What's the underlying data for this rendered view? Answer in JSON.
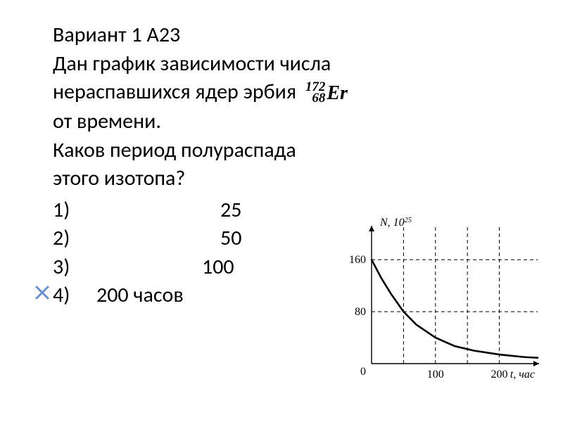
{
  "header": "Вариант 1 А23",
  "prompt_line1": "Дан график зависимости числа",
  "prompt_line2_a": "нераспавшихся ядер эрбия",
  "isotope": {
    "mass": "172",
    "z": "68",
    "el": "Er"
  },
  "prompt_line3": "от времени.",
  "prompt_line4": "Каков период полураспада",
  "prompt_line5": "этого изотопа?",
  "answers": [
    {
      "n": "1)",
      "v": "25"
    },
    {
      "n": "2)",
      "v": "50"
    },
    {
      "n": "3)",
      "v": "100"
    },
    {
      "n": "4)",
      "v": "200 часов"
    }
  ],
  "xmark_color": "#6b8fc9",
  "chart": {
    "axis": {
      "ylabel": "N, 10",
      "ylabel_sup": "25",
      "xlabel": "t, час",
      "yticks": [
        {
          "v": 80,
          "label": "80"
        },
        {
          "v": 160,
          "label": "160"
        }
      ],
      "xticks": [
        {
          "v": 100,
          "label": "100"
        },
        {
          "v": 200,
          "label": "200"
        }
      ],
      "xlim": [
        0,
        260
      ],
      "ylim": [
        0,
        210
      ]
    },
    "grid_y": [
      80,
      160
    ],
    "grid_x": [
      50,
      100,
      150,
      200
    ],
    "curve": [
      {
        "x": 0,
        "y": 160
      },
      {
        "x": 15,
        "y": 132
      },
      {
        "x": 30,
        "y": 108
      },
      {
        "x": 50,
        "y": 80
      },
      {
        "x": 70,
        "y": 60
      },
      {
        "x": 100,
        "y": 40
      },
      {
        "x": 130,
        "y": 27
      },
      {
        "x": 160,
        "y": 20
      },
      {
        "x": 200,
        "y": 14
      },
      {
        "x": 240,
        "y": 10
      },
      {
        "x": 260,
        "y": 9
      }
    ],
    "colors": {
      "axis": "#000000",
      "grid": "#000000",
      "curve": "#000000",
      "text": "#000000",
      "bg": "#ffffff"
    },
    "style": {
      "axis_width": 1.4,
      "curve_width": 2.6,
      "grid_dash": "5,4",
      "grid_width": 1,
      "label_fontsize": 16,
      "tick_fontsize": 16,
      "font_family": "Times New Roman, serif"
    }
  }
}
